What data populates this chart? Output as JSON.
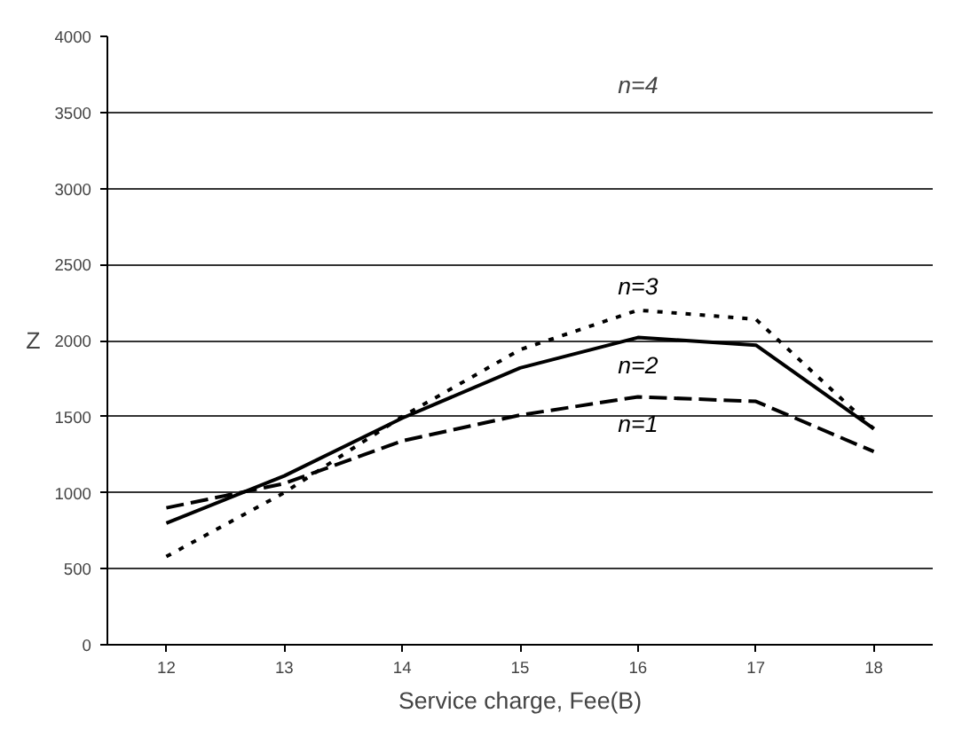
{
  "chart_data": {
    "type": "line",
    "xlabel": "Service charge, Fee(B)",
    "ylabel": "Z",
    "x": [
      12,
      13,
      14,
      15,
      16,
      17,
      18
    ],
    "series": [
      {
        "name": "n=1",
        "color": "#000000",
        "line_style": "dashed",
        "values": [
          900,
          1060,
          1340,
          1510,
          1630,
          1600,
          1270
        ]
      },
      {
        "name": "n=2",
        "color": "#000000",
        "line_style": "solid",
        "values": [
          800,
          1110,
          1490,
          1820,
          2020,
          1970,
          1420
        ]
      },
      {
        "name": "n=3",
        "color": "#000000",
        "line_style": "dotted",
        "values": [
          580,
          1000,
          1500,
          1940,
          2200,
          2140,
          1420
        ]
      }
    ],
    "xlim": [
      11.5,
      18.5
    ],
    "xticks": [
      12,
      13,
      14,
      15,
      16,
      17,
      18
    ],
    "ylim": [
      0,
      4000
    ],
    "yticks": [
      0,
      500,
      1000,
      1500,
      2000,
      2500,
      3000,
      3500,
      4000
    ],
    "grid": "y",
    "marker": "none",
    "annotations": [
      "n=4"
    ]
  }
}
